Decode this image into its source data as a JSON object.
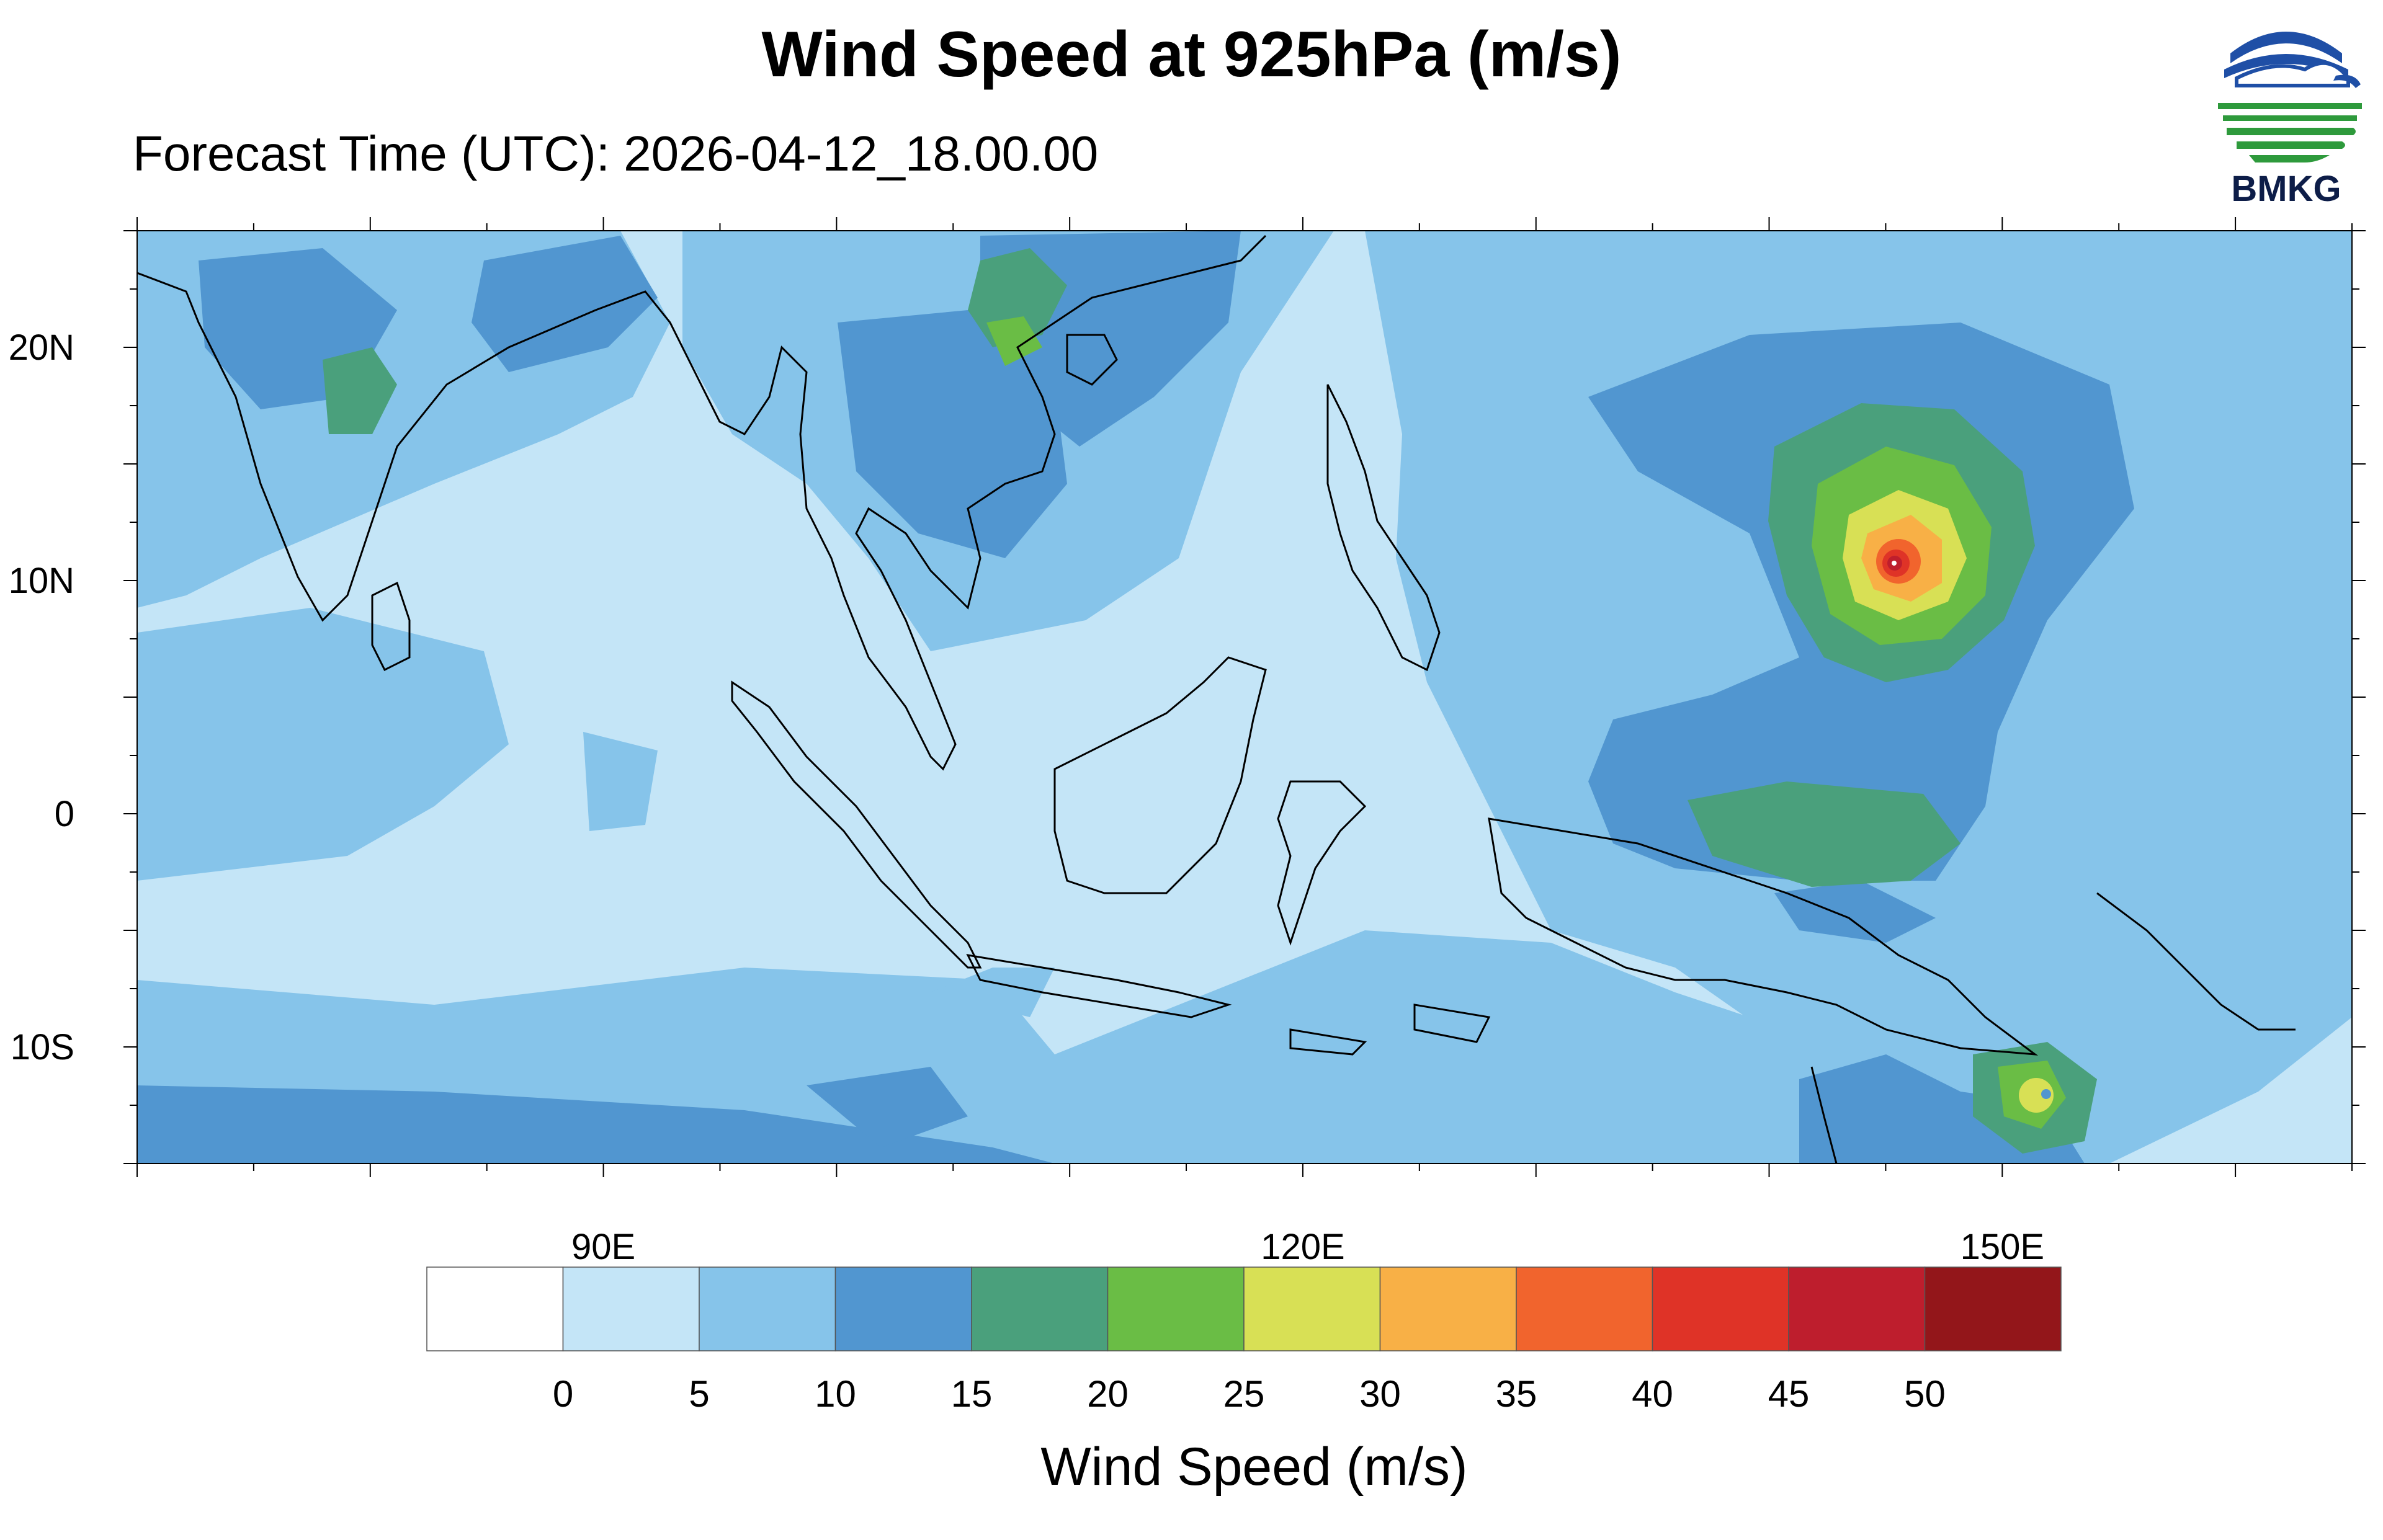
{
  "header": {
    "title": "Wind Speed at 925hPa (m/s)",
    "subtitle": "Forecast Time (UTC): 2026-04-12_18.00.00",
    "logo_text": "BMKG"
  },
  "map": {
    "lon_range": [
      70,
      165
    ],
    "lat_range": [
      -15,
      25
    ],
    "lat_labels": [
      {
        "lat": 20,
        "text": "20N"
      },
      {
        "lat": 10,
        "text": "10N"
      },
      {
        "lat": 0,
        "text": "0"
      },
      {
        "lat": -10,
        "text": "10S"
      }
    ],
    "lon_labels": [
      {
        "lon": 90,
        "text": "90E"
      },
      {
        "lon": 120,
        "text": "120E"
      },
      {
        "lon": 150,
        "text": "150E"
      }
    ],
    "features": [
      {
        "name": "typhoon-center-western-pacific",
        "lon": 145.6,
        "lat": 10.6,
        "max_speed_range": "45-50"
      },
      {
        "name": "cyclone-center-coral-sea",
        "lon": 152.2,
        "lat": -12.2,
        "max_speed_range": "25-30"
      }
    ]
  },
  "legend": {
    "title": "Wind Speed (m/s)",
    "tick_labels": [
      "0",
      "5",
      "10",
      "15",
      "20",
      "25",
      "30",
      "35",
      "40",
      "45",
      "50"
    ],
    "colors": [
      "#ffffff",
      "#c4e5f7",
      "#86c4ea",
      "#5196d0",
      "#4aa07c",
      "#6abd45",
      "#d8e055",
      "#f8b046",
      "#f1642d",
      "#df3327",
      "#be1e2d",
      "#93161a"
    ]
  }
}
